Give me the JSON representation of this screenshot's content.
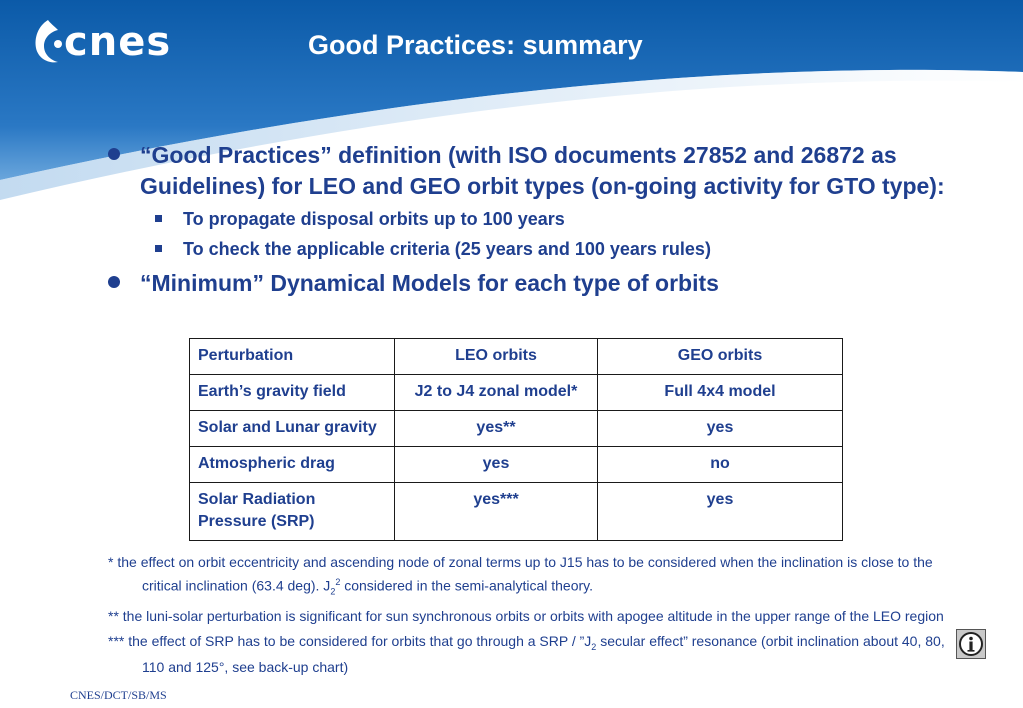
{
  "header": {
    "logo_text": "cnes",
    "title": "Good Practices: summary",
    "colors": {
      "primary": "#0d5aa7",
      "text": "#1f3f8f"
    }
  },
  "bullets": [
    {
      "text": "“Good Practices” definition (with ISO documents 27852 and 26872 as Guidelines) for LEO and GEO orbit types (on-going activity for GTO type):",
      "sub": [
        "To propagate disposal orbits up to 100 years",
        "To check the applicable criteria (25 years and 100 years rules)"
      ]
    },
    {
      "text": "“Minimum” Dynamical Models for each type of orbits"
    }
  ],
  "table": {
    "headers": [
      "Perturbation",
      "LEO orbits",
      "GEO orbits"
    ],
    "rows": [
      [
        "Earth’s gravity field",
        "J2 to J4 zonal model*",
        "Full 4x4 model"
      ],
      [
        "Solar and Lunar gravity",
        "yes**",
        "yes"
      ],
      [
        "Atmospheric drag",
        "yes",
        "no"
      ],
      [
        "Solar Radiation Pressure (SRP)",
        "yes***",
        "yes"
      ]
    ]
  },
  "notes": {
    "n1_a": "* the effect on orbit eccentricity  and ascending node of zonal terms up to J15 has to be considered when the inclination is close to the critical inclination (63.4 deg). J",
    "n1_sub": "2",
    "n1_sup": "2",
    "n1_b": " considered in the semi-analytical theory.",
    "n2": "** the luni-solar perturbation  is significant for sun synchronous orbits or orbits with apogee altitude in the upper range of the LEO region",
    "n3_a": "*** the effect of SRP has to be considered for orbits that go through a SRP / ”J",
    "n3_sub": "2",
    "n3_b": " secular effect” resonance (orbit inclination about 40, 80, 110 and 125°, see back-up chart)"
  },
  "info_button": {
    "icon": "info-icon"
  },
  "footer": "CNES/DCT/SB/MS"
}
